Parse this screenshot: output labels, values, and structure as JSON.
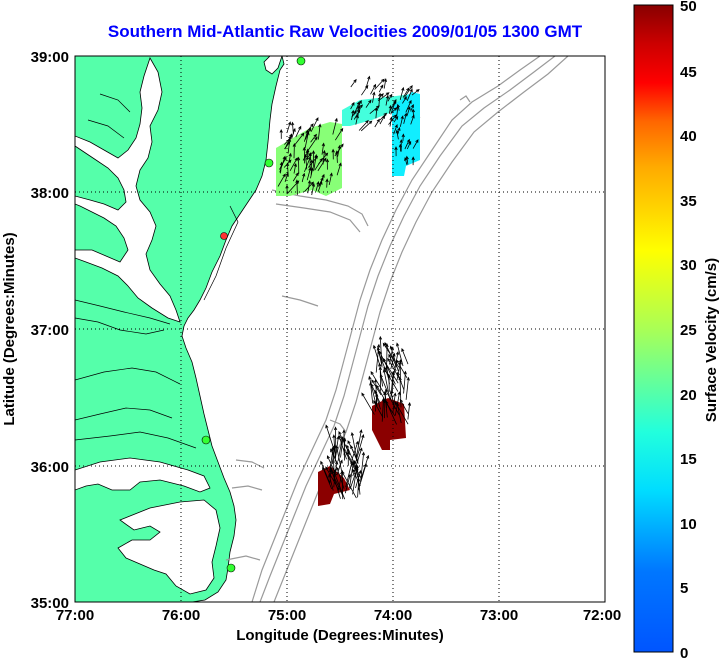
{
  "title": "Southern Mid-Atlantic Raw Velocities 2009/01/05 1300 GMT",
  "x_axis": {
    "label": "Longitude (Degrees:Minutes)",
    "ticks": [
      "77:00",
      "76:00",
      "75:00",
      "74:00",
      "73:00",
      "72:00"
    ]
  },
  "y_axis": {
    "label": "Latitude (Degrees:Minutes)",
    "ticks": [
      "39:00",
      "38:00",
      "37:00",
      "36:00",
      "35:00"
    ]
  },
  "colorbar": {
    "label": "Surface Velocity (cm/s)",
    "ticks": [
      "50",
      "45",
      "40",
      "35",
      "30",
      "25",
      "20",
      "15",
      "10",
      "5",
      "0"
    ],
    "min": 0,
    "max": 50
  },
  "colors": {
    "land": "#55ffaa",
    "ocean": "#ffffff",
    "contour": "#9a9a9a",
    "station": "#33ff33",
    "station_offline": "#ff3333",
    "title": "#0000ff"
  },
  "chart_data": {
    "type": "heatmap",
    "x_range_deg": [
      -77,
      -72
    ],
    "y_range_deg": [
      35,
      39
    ],
    "grid": true,
    "stations": [
      {
        "lon": -75.1,
        "lat": 38.95,
        "status": "active"
      },
      {
        "lon": -75.16,
        "lat": 38.23,
        "status": "active"
      },
      {
        "lon": -75.45,
        "lat": 37.69,
        "status": "offline"
      },
      {
        "lon": -75.7,
        "lat": 36.19,
        "status": "active"
      },
      {
        "lon": -75.5,
        "lat": 35.25,
        "status": "active"
      }
    ],
    "velocity_regions": [
      {
        "lon_min": -75.1,
        "lon_max": -74.5,
        "lat_min": 37.97,
        "lat_max": 38.45,
        "speed_cms": 15
      },
      {
        "lon_min": -74.5,
        "lon_max": -73.8,
        "lat_min": 38.5,
        "lat_max": 38.78,
        "speed_cms": 12
      },
      {
        "lon_min": -74.0,
        "lon_max": -73.8,
        "lat_min": 38.1,
        "lat_max": 38.6,
        "speed_cms": 10
      },
      {
        "lon_min": -74.2,
        "lon_max": -73.85,
        "lat_min": 36.12,
        "lat_max": 36.45,
        "speed_cms": 50
      },
      {
        "lon_min": -74.65,
        "lon_max": -74.4,
        "lat_min": 35.73,
        "lat_max": 35.95,
        "speed_cms": 50
      }
    ]
  }
}
